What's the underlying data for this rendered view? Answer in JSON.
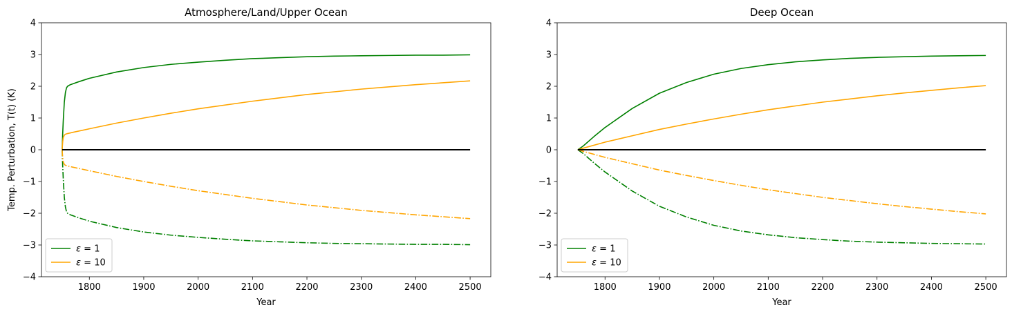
{
  "chart_data": [
    {
      "type": "line",
      "title": "Atmosphere/Land/Upper Ocean",
      "xlabel": "Year",
      "ylabel": "Temp. Perturbation, T(t) (K)",
      "xlim": [
        1712,
        2538
      ],
      "ylim": [
        -4,
        4
      ],
      "xticks": [
        1800,
        1900,
        2000,
        2100,
        2200,
        2300,
        2400,
        2500
      ],
      "yticks": [
        -4,
        -3,
        -2,
        -1,
        0,
        1,
        2,
        3,
        4
      ],
      "grid": false,
      "legend_position": "lower-left",
      "legend": [
        {
          "label_main": "ε",
          "label_rest": " = 1",
          "color": "#008000"
        },
        {
          "label_main": "ε",
          "label_rest": " = 10",
          "color": "#FFA500"
        }
      ],
      "series": [
        {
          "legend_index": 0,
          "color": "#008000",
          "style": "solid",
          "x": [
            1750,
            1751,
            1752,
            1754,
            1756,
            1758,
            1760,
            1765,
            1770,
            1780,
            1800,
            1850,
            1900,
            1950,
            2000,
            2050,
            2100,
            2150,
            2200,
            2250,
            2300,
            2350,
            2400,
            2450,
            2500
          ],
          "y": [
            0,
            0.5,
            0.9,
            1.5,
            1.8,
            1.95,
            2.0,
            2.05,
            2.08,
            2.14,
            2.25,
            2.45,
            2.59,
            2.69,
            2.76,
            2.82,
            2.87,
            2.9,
            2.93,
            2.95,
            2.96,
            2.97,
            2.98,
            2.98,
            2.99
          ]
        },
        {
          "legend_index": 0,
          "color": "#008000",
          "style": "dashdot",
          "x": [
            1750,
            1751,
            1752,
            1754,
            1756,
            1758,
            1760,
            1765,
            1770,
            1780,
            1800,
            1850,
            1900,
            1950,
            2000,
            2050,
            2100,
            2150,
            2200,
            2250,
            2300,
            2350,
            2400,
            2450,
            2500
          ],
          "y": [
            0,
            -0.5,
            -0.9,
            -1.5,
            -1.8,
            -1.95,
            -2.0,
            -2.05,
            -2.08,
            -2.14,
            -2.25,
            -2.45,
            -2.59,
            -2.69,
            -2.76,
            -2.82,
            -2.87,
            -2.9,
            -2.93,
            -2.95,
            -2.96,
            -2.97,
            -2.98,
            -2.98,
            -2.99
          ]
        },
        {
          "legend_index": 1,
          "color": "#FFA500",
          "style": "solid",
          "x": [
            1750,
            1751,
            1752,
            1754,
            1756,
            1760,
            1770,
            1800,
            1850,
            1900,
            1950,
            2000,
            2100,
            2200,
            2300,
            2400,
            2500
          ],
          "y": [
            0,
            0.25,
            0.38,
            0.46,
            0.49,
            0.51,
            0.55,
            0.66,
            0.84,
            1.0,
            1.15,
            1.29,
            1.53,
            1.74,
            1.91,
            2.05,
            2.17
          ]
        },
        {
          "legend_index": 1,
          "color": "#FFA500",
          "style": "dashdot",
          "x": [
            1750,
            1751,
            1752,
            1754,
            1756,
            1760,
            1770,
            1800,
            1850,
            1900,
            1950,
            2000,
            2100,
            2200,
            2300,
            2400,
            2500
          ],
          "y": [
            0,
            -0.25,
            -0.38,
            -0.46,
            -0.49,
            -0.51,
            -0.55,
            -0.66,
            -0.84,
            -1.0,
            -1.15,
            -1.29,
            -1.53,
            -1.74,
            -1.91,
            -2.05,
            -2.17
          ]
        },
        {
          "color": "#000000",
          "style": "solid",
          "x": [
            1750,
            2500
          ],
          "y": [
            0,
            0
          ]
        }
      ]
    },
    {
      "type": "line",
      "title": "Deep Ocean",
      "xlabel": "Year",
      "ylabel": "",
      "xlim": [
        1712,
        2538
      ],
      "ylim": [
        -4,
        4
      ],
      "xticks": [
        1800,
        1900,
        2000,
        2100,
        2200,
        2300,
        2400,
        2500
      ],
      "yticks": [
        -4,
        -3,
        -2,
        -1,
        0,
        1,
        2,
        3,
        4
      ],
      "grid": false,
      "legend_position": "lower-left",
      "legend": [
        {
          "label_main": "ε",
          "label_rest": " = 1",
          "color": "#008000"
        },
        {
          "label_main": "ε",
          "label_rest": " = 10",
          "color": "#FFA500"
        }
      ],
      "series": [
        {
          "legend_index": 0,
          "color": "#008000",
          "style": "solid",
          "x": [
            1750,
            1760,
            1780,
            1800,
            1850,
            1900,
            1950,
            2000,
            2050,
            2100,
            2150,
            2200,
            2250,
            2300,
            2350,
            2400,
            2450,
            2500
          ],
          "y": [
            0,
            0.12,
            0.42,
            0.7,
            1.3,
            1.78,
            2.12,
            2.38,
            2.56,
            2.68,
            2.77,
            2.83,
            2.88,
            2.91,
            2.93,
            2.95,
            2.96,
            2.97
          ]
        },
        {
          "legend_index": 0,
          "color": "#008000",
          "style": "dashdot",
          "x": [
            1750,
            1760,
            1780,
            1800,
            1850,
            1900,
            1950,
            2000,
            2050,
            2100,
            2150,
            2200,
            2250,
            2300,
            2350,
            2400,
            2450,
            2500
          ],
          "y": [
            0,
            -0.12,
            -0.42,
            -0.7,
            -1.3,
            -1.78,
            -2.12,
            -2.38,
            -2.56,
            -2.68,
            -2.77,
            -2.83,
            -2.88,
            -2.91,
            -2.93,
            -2.95,
            -2.96,
            -2.97
          ]
        },
        {
          "legend_index": 1,
          "color": "#FFA500",
          "style": "solid",
          "x": [
            1750,
            1760,
            1800,
            1850,
            1900,
            1950,
            2000,
            2050,
            2100,
            2150,
            2200,
            2250,
            2300,
            2350,
            2400,
            2450,
            2500
          ],
          "y": [
            0,
            0.05,
            0.24,
            0.44,
            0.64,
            0.81,
            0.97,
            1.12,
            1.26,
            1.38,
            1.5,
            1.6,
            1.7,
            1.79,
            1.87,
            1.95,
            2.02
          ]
        },
        {
          "legend_index": 1,
          "color": "#FFA500",
          "style": "dashdot",
          "x": [
            1750,
            1760,
            1800,
            1850,
            1900,
            1950,
            2000,
            2050,
            2100,
            2150,
            2200,
            2250,
            2300,
            2350,
            2400,
            2450,
            2500
          ],
          "y": [
            0,
            -0.05,
            -0.24,
            -0.44,
            -0.64,
            -0.81,
            -0.97,
            -1.12,
            -1.26,
            -1.38,
            -1.5,
            -1.6,
            -1.7,
            -1.79,
            -1.87,
            -1.95,
            -2.02
          ]
        },
        {
          "color": "#000000",
          "style": "solid",
          "x": [
            1750,
            2500
          ],
          "y": [
            0,
            0
          ]
        }
      ]
    }
  ]
}
